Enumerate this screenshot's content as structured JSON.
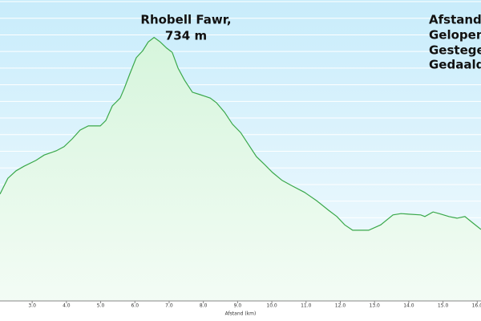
{
  "chart_data": {
    "type": "area",
    "annotation": [
      "Rhobell Fawr,",
      "734 m"
    ],
    "stats": [
      "Afstand:",
      "Gelopen:",
      "Gestegen:",
      "Gedaald:"
    ],
    "xlabel": "Afstand (km)",
    "color": "#3aa84a",
    "grid": true,
    "x": [
      2.06,
      2.29,
      2.53,
      2.76,
      3.11,
      3.35,
      3.7,
      3.93,
      4.17,
      4.4,
      4.64,
      4.99,
      5.15,
      5.34,
      5.57,
      5.69,
      5.85,
      6.04,
      6.23,
      6.39,
      6.56,
      6.74,
      6.93,
      7.09,
      7.26,
      7.45,
      7.68,
      7.91,
      8.2,
      8.38,
      8.62,
      8.85,
      9.09,
      9.32,
      9.55,
      9.79,
      10.02,
      10.3,
      10.61,
      10.96,
      11.31,
      11.66,
      11.9,
      12.13,
      12.36,
      12.83,
      13.18,
      13.54,
      13.77,
      14.35,
      14.47,
      14.71,
      14.89,
      15.17,
      15.41,
      15.64,
      15.88,
      16.11
    ],
    "values": [
      357,
      395,
      413,
      424,
      438,
      451,
      461,
      471,
      490,
      511,
      521,
      521,
      534,
      569,
      588,
      611,
      646,
      685,
      702,
      723,
      734,
      723,
      708,
      698,
      660,
      631,
      602,
      596,
      588,
      577,
      554,
      525,
      505,
      476,
      447,
      428,
      409,
      390,
      376,
      361,
      341,
      318,
      303,
      283,
      270,
      270,
      283,
      307,
      310,
      307,
      303,
      314,
      310,
      303,
      299,
      303,
      287,
      272
    ],
    "xlim": [
      2.06,
      16.11
    ],
    "ylim": [
      100,
      820
    ],
    "xticks": [
      {
        "value": 3,
        "label": "3.0"
      },
      {
        "value": 4,
        "label": "4.0"
      },
      {
        "value": 5,
        "label": "5.0"
      },
      {
        "value": 6,
        "label": "6.0"
      },
      {
        "value": 7,
        "label": "7.0"
      },
      {
        "value": 8,
        "label": "8.0"
      },
      {
        "value": 9,
        "label": "9.0"
      },
      {
        "value": 10,
        "label": "10.0"
      },
      {
        "value": 11,
        "label": "11.0"
      },
      {
        "value": 12,
        "label": "12.0"
      },
      {
        "value": 13,
        "label": "13.0"
      },
      {
        "value": 14,
        "label": "14.0"
      },
      {
        "value": 15,
        "label": "15.0"
      },
      {
        "value": 16,
        "label": "16.0"
      }
    ],
    "yticks": [
      140,
      180,
      220,
      260,
      300,
      340,
      380,
      420,
      460,
      500,
      540,
      580,
      620,
      660,
      700,
      740,
      780,
      820
    ]
  }
}
